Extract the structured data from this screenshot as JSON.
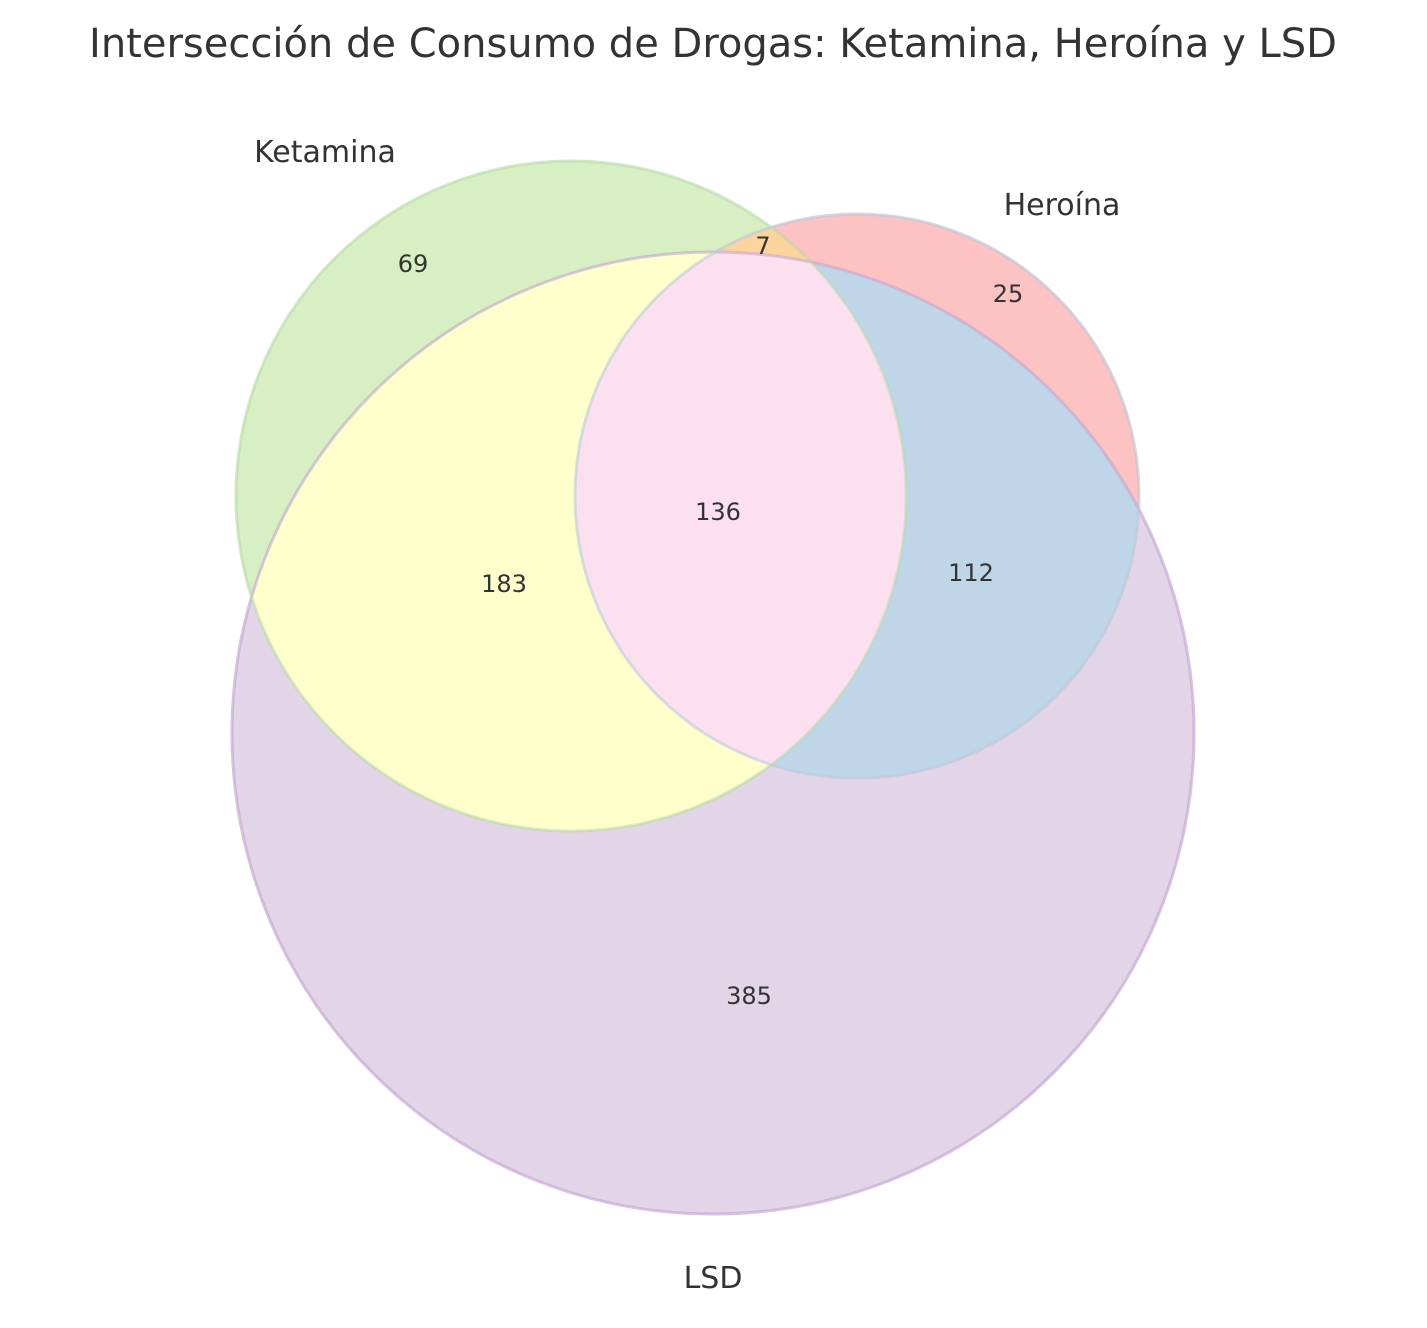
{
  "title": "Intersección de Consumo de Drogas: Ketamina, Heroína y LSD",
  "sets": [
    {
      "id": "ketamina",
      "label": "Ketamina",
      "color": "#b2df8a"
    },
    {
      "id": "heroina",
      "label": "Heroína",
      "color": "#fb9a99"
    },
    {
      "id": "lsd",
      "label": "LSD",
      "color": "#cab2d6"
    }
  ],
  "regions": {
    "ketamina_only": "69",
    "heroina_only": "25",
    "lsd_only": "385",
    "ketamina_heroina": "7",
    "ketamina_lsd": "183",
    "heroina_lsd": "112",
    "all_three": "136"
  },
  "region_colors": {
    "ketamina_heroina": "#fdd49e",
    "ketamina_lsd": "#ffffcc",
    "heroina_lsd": "#bfd5e8",
    "all_three": "#fde0ef"
  }
}
